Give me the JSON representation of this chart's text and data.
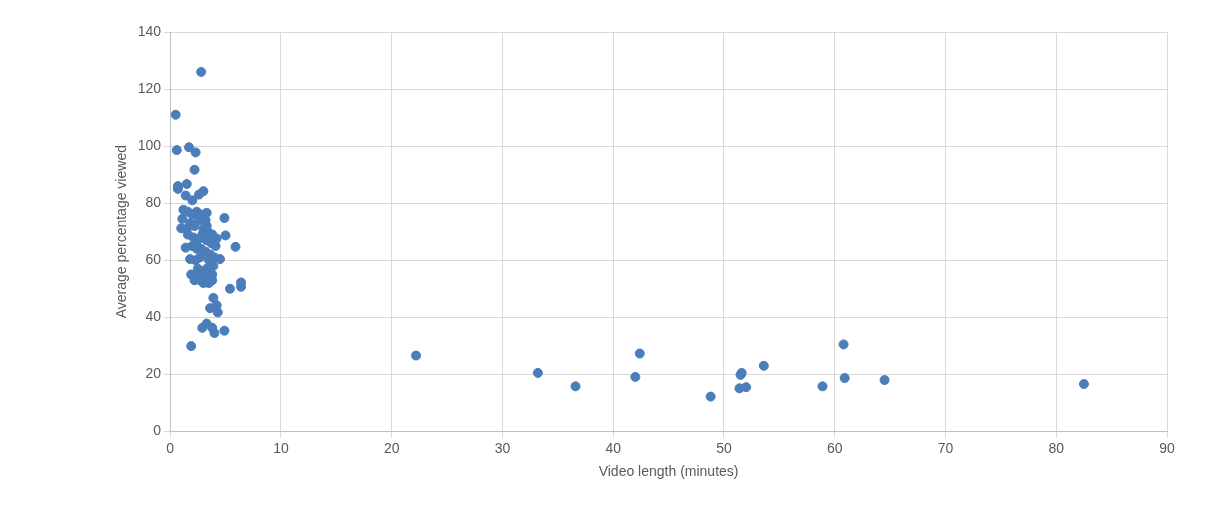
{
  "chart_data": {
    "type": "scatter",
    "xlabel": "Video length (minutes)",
    "ylabel": "Average percentage viewed",
    "color": "#4a7ebb",
    "marker": "circle",
    "grid": true,
    "legend": false,
    "xlim": [
      0,
      90
    ],
    "xticks": [
      0,
      10,
      20,
      30,
      40,
      50,
      60,
      70,
      80,
      90
    ],
    "ylim": [
      0,
      140
    ],
    "yticks": [
      0,
      20,
      40,
      60,
      80,
      100,
      120,
      140
    ],
    "x": [
      2.8,
      0.5,
      0.6,
      1.7,
      2.3,
      2.2,
      0.7,
      0.7,
      1.5,
      3.0,
      1.4,
      2.0,
      2.6,
      1.2,
      4.9,
      3.3,
      1.1,
      1.5,
      1.0,
      3.3,
      5.0,
      4.2,
      1.4,
      5.9,
      4.5,
      1.8,
      1.9,
      6.4,
      6.4,
      5.4,
      3.8,
      3.0,
      3.9,
      4.2,
      4.3,
      3.6,
      2.9,
      3.3,
      3.8,
      4.0,
      4.9,
      1.9,
      1.6,
      2.0,
      2.4,
      2.8,
      3.2,
      1.8,
      2.2,
      2.6,
      3.0,
      3.4,
      3.8,
      1.6,
      2.1,
      2.5,
      2.9,
      3.3,
      3.7,
      4.1,
      2.0,
      2.4,
      2.8,
      3.2,
      3.6,
      4.0,
      2.3,
      2.7,
      3.5,
      3.9,
      2.5,
      3.3,
      2.6,
      3.8,
      2.2,
      2.7,
      3.1,
      3.5,
      22.2,
      33.2,
      36.6,
      42.0,
      42.4,
      48.8,
      51.5,
      51.6,
      51.4,
      52.0,
      53.6,
      58.9,
      60.8,
      60.9,
      64.5,
      82.5
    ],
    "values": [
      126,
      111,
      98.6,
      99.6,
      97.8,
      91.7,
      86,
      85,
      86.7,
      84.2,
      82.7,
      81,
      83,
      77.7,
      74.8,
      76.6,
      74.5,
      71,
      71.2,
      72,
      68.7,
      67.6,
      64.4,
      64.7,
      60.4,
      60.4,
      55,
      52.2,
      50.7,
      50,
      53,
      52,
      46.8,
      44.2,
      41.7,
      43.2,
      36.3,
      37.8,
      36.3,
      34.5,
      35.3,
      29.9,
      77,
      76,
      77,
      76,
      74,
      73,
      72,
      74,
      71,
      70,
      69,
      69,
      68,
      67,
      69,
      67,
      66,
      65,
      65,
      64,
      64,
      63,
      62,
      61,
      60,
      61,
      60,
      58,
      57,
      57,
      56,
      55,
      53,
      53,
      54,
      52,
      26.6,
      20.5,
      15.8,
      19.1,
      27.3,
      12.2,
      19.8,
      20.5,
      15.1,
      15.5,
      23,
      15.8,
      30.5,
      18.7,
      18,
      16.6
    ]
  }
}
